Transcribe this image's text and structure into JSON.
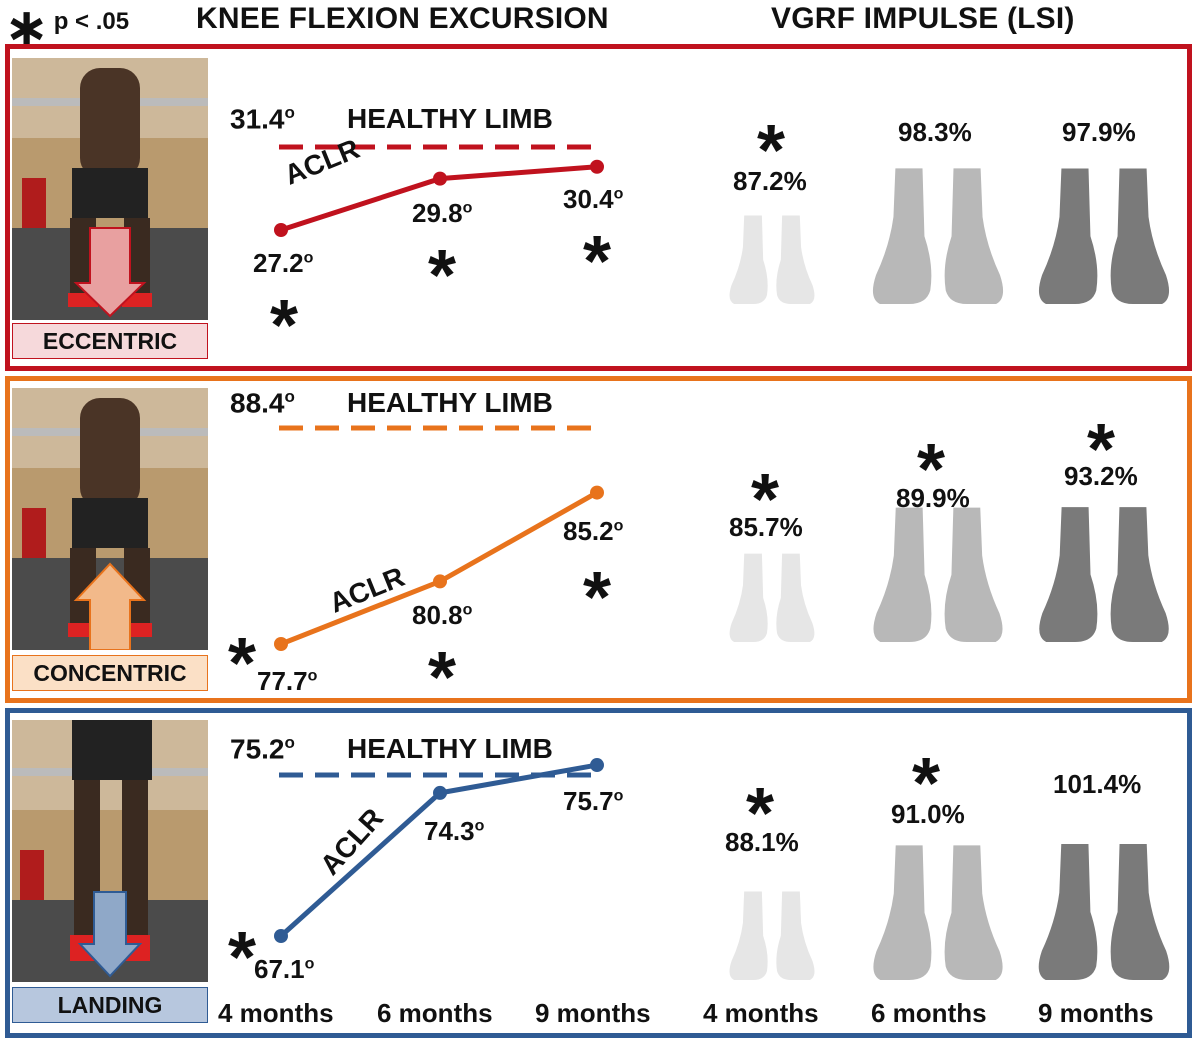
{
  "legend": {
    "symbol": "∗",
    "text": "p < .05"
  },
  "headers": {
    "knee": "KNEE FLEXION EXCURSION",
    "vgrf": "VGRF IMPULSE (LSI)"
  },
  "colors": {
    "eccentric": "#c0121e",
    "concentric": "#e8731c",
    "landing": "#2f5b94",
    "foot_4": "#e6e6e6",
    "foot_6": "#b8b8b8",
    "foot_9": "#7a7a7a"
  },
  "timepoints": [
    "4 months",
    "6 months",
    "9 months"
  ],
  "panels": [
    {
      "id": "eccentric",
      "phase_label": "ECCENTRIC",
      "healthy_label": "HEALTHY LIMB",
      "healthy_value": "31.4",
      "aclr_label": "ACLR",
      "aclr_labels": [
        "27.2",
        "29.8",
        "30.4"
      ],
      "knee_sig": [
        true,
        true,
        true
      ],
      "vgrf_labels": [
        "87.2%",
        "98.3%",
        "97.9%"
      ],
      "vgrf_sig": [
        true,
        false,
        false
      ]
    },
    {
      "id": "concentric",
      "phase_label": "CONCENTRIC",
      "healthy_label": "HEALTHY LIMB",
      "healthy_value": "88.4",
      "aclr_label": "ACLR",
      "aclr_labels": [
        "77.7",
        "80.8",
        "85.2"
      ],
      "knee_sig": [
        true,
        true,
        true
      ],
      "vgrf_labels": [
        "85.7%",
        "89.9%",
        "93.2%"
      ],
      "vgrf_sig": [
        true,
        true,
        true
      ]
    },
    {
      "id": "landing",
      "phase_label": "LANDING",
      "healthy_label": "HEALTHY LIMB",
      "healthy_value": "75.2",
      "aclr_label": "ACLR",
      "aclr_labels": [
        "67.1",
        "74.3",
        "75.7"
      ],
      "knee_sig": [
        true,
        false,
        false
      ],
      "vgrf_labels": [
        "88.1%",
        "91.0%",
        "101.4%"
      ],
      "vgrf_sig": [
        true,
        true,
        false
      ]
    }
  ],
  "chart_data": [
    {
      "type": "line",
      "title": "KNEE FLEXION EXCURSION",
      "panel": "ECCENTRIC",
      "x": [
        "4 months",
        "6 months",
        "9 months"
      ],
      "series": [
        {
          "name": "ACLR",
          "values": [
            27.2,
            29.8,
            30.4
          ]
        },
        {
          "name": "HEALTHY LIMB",
          "values": [
            31.4,
            31.4,
            31.4
          ]
        }
      ]
    },
    {
      "type": "line",
      "title": "KNEE FLEXION EXCURSION",
      "panel": "CONCENTRIC",
      "x": [
        "4 months",
        "6 months",
        "9 months"
      ],
      "series": [
        {
          "name": "ACLR",
          "values": [
            77.7,
            80.8,
            85.2
          ]
        },
        {
          "name": "HEALTHY LIMB",
          "values": [
            88.4,
            88.4,
            88.4
          ]
        }
      ]
    },
    {
      "type": "line",
      "title": "KNEE FLEXION EXCURSION",
      "panel": "LANDING",
      "x": [
        "4 months",
        "6 months",
        "9 months"
      ],
      "series": [
        {
          "name": "ACLR",
          "values": [
            67.1,
            74.3,
            75.7
          ]
        },
        {
          "name": "HEALTHY LIMB",
          "values": [
            75.2,
            75.2,
            75.2
          ]
        }
      ]
    },
    {
      "type": "bar",
      "title": "VGRF IMPULSE (LSI)",
      "categories": [
        "4 months",
        "6 months",
        "9 months"
      ],
      "series": [
        {
          "name": "ECCENTRIC",
          "values": [
            87.2,
            98.3,
            97.9
          ]
        },
        {
          "name": "CONCENTRIC",
          "values": [
            85.7,
            89.9,
            93.2
          ]
        },
        {
          "name": "LANDING",
          "values": [
            88.1,
            91.0,
            101.4
          ]
        }
      ]
    }
  ]
}
